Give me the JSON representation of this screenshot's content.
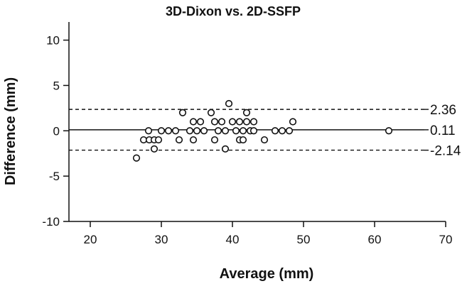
{
  "chart_data": {
    "type": "scatter",
    "title": "3D-Dixon vs. 2D-SSFP",
    "xlabel": "Average (mm)",
    "ylabel": "Difference (mm)",
    "xlim": [
      17,
      70
    ],
    "ylim": [
      -10,
      12
    ],
    "x_ticks": [
      20,
      30,
      40,
      50,
      60,
      70
    ],
    "y_ticks": [
      -10,
      -5,
      0,
      5,
      10
    ],
    "grid": false,
    "legend": "none",
    "marker": "open-circle",
    "colors": {
      "axis": "#111111",
      "points": "#111111",
      "background": "#ffffff"
    },
    "reference_lines": [
      {
        "value": 2.36,
        "label": "2.36",
        "style": "dashed"
      },
      {
        "value": 0.11,
        "label": "0.11",
        "style": "solid"
      },
      {
        "value": -2.14,
        "label": "-2.14",
        "style": "dashed"
      }
    ],
    "points": [
      {
        "x": 26.5,
        "y": -3
      },
      {
        "x": 27.5,
        "y": -1
      },
      {
        "x": 28.2,
        "y": 0
      },
      {
        "x": 28.3,
        "y": -1
      },
      {
        "x": 29.0,
        "y": -1
      },
      {
        "x": 29.0,
        "y": -2
      },
      {
        "x": 29.6,
        "y": -1
      },
      {
        "x": 30.0,
        "y": 0
      },
      {
        "x": 31.0,
        "y": 0
      },
      {
        "x": 32.0,
        "y": 0
      },
      {
        "x": 32.5,
        "y": -1
      },
      {
        "x": 33.0,
        "y": 2
      },
      {
        "x": 34.0,
        "y": 0
      },
      {
        "x": 34.5,
        "y": 1
      },
      {
        "x": 34.5,
        "y": -1
      },
      {
        "x": 35.0,
        "y": 0
      },
      {
        "x": 35.5,
        "y": 1
      },
      {
        "x": 36.0,
        "y": 0
      },
      {
        "x": 37.0,
        "y": 2
      },
      {
        "x": 37.5,
        "y": 1
      },
      {
        "x": 37.5,
        "y": -1
      },
      {
        "x": 38.0,
        "y": 0
      },
      {
        "x": 38.5,
        "y": 1
      },
      {
        "x": 39.0,
        "y": 0
      },
      {
        "x": 39.0,
        "y": -2
      },
      {
        "x": 39.5,
        "y": 3
      },
      {
        "x": 40.0,
        "y": 1
      },
      {
        "x": 40.5,
        "y": 0
      },
      {
        "x": 41.0,
        "y": 1
      },
      {
        "x": 41.0,
        "y": -1
      },
      {
        "x": 41.5,
        "y": 0
      },
      {
        "x": 41.5,
        "y": -1
      },
      {
        "x": 42.0,
        "y": 2
      },
      {
        "x": 42.0,
        "y": 1
      },
      {
        "x": 42.5,
        "y": 0
      },
      {
        "x": 43.0,
        "y": 1
      },
      {
        "x": 43.0,
        "y": 0
      },
      {
        "x": 44.5,
        "y": -1
      },
      {
        "x": 46.0,
        "y": 0
      },
      {
        "x": 47.0,
        "y": 0
      },
      {
        "x": 48.0,
        "y": 0
      },
      {
        "x": 48.5,
        "y": 1
      },
      {
        "x": 62.0,
        "y": 0
      }
    ]
  }
}
